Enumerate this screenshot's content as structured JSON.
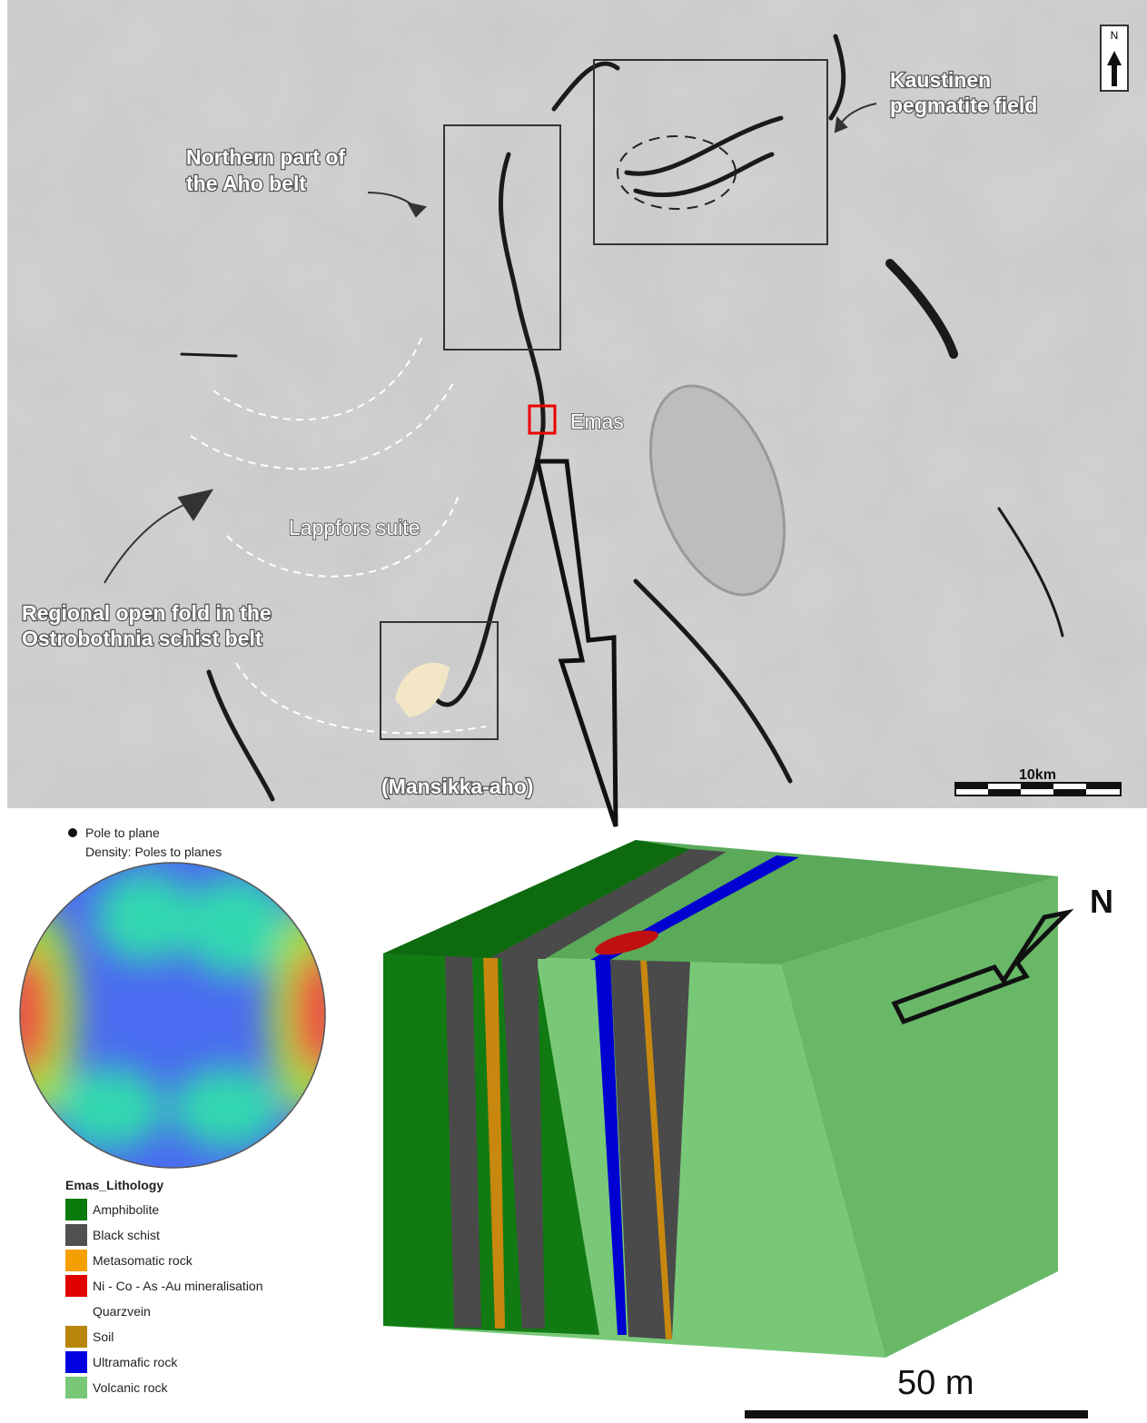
{
  "map": {
    "north": "N",
    "scale": "10km",
    "labels": {
      "kaustinen": [
        "Kaustinen",
        "pegmatite field"
      ],
      "aho": [
        "Northern part of",
        "the Aho belt"
      ],
      "emas": "Emas",
      "lappfors": "Lappfors suite",
      "fold": [
        "Regional open fold in the",
        "Ostrobothnia schist belt"
      ],
      "mansikka": "(Mansikka-aho)"
    }
  },
  "stereonet": {
    "legend": [
      "Pole to plane",
      "Density: Poles to planes"
    ]
  },
  "lithology_legend": {
    "title": "Emas_Lithology",
    "items": [
      {
        "label": "Amphibolite",
        "color": "#0a7a0a"
      },
      {
        "label": "Black schist",
        "color": "#505050"
      },
      {
        "label": "Metasomatic rock",
        "color": "#f5a000"
      },
      {
        "label": "Ni - Co - As -Au mineralisation",
        "color": "#e00000"
      },
      {
        "label": "Quarzvein",
        "color": "#ffffff"
      },
      {
        "label": "Soil",
        "color": "#b8860b"
      },
      {
        "label": "Ultramafic rock",
        "color": "#0000e0"
      },
      {
        "label": "Volcanic rock",
        "color": "#78c878"
      }
    ]
  },
  "block": {
    "north": "N",
    "scale": "50 m"
  }
}
